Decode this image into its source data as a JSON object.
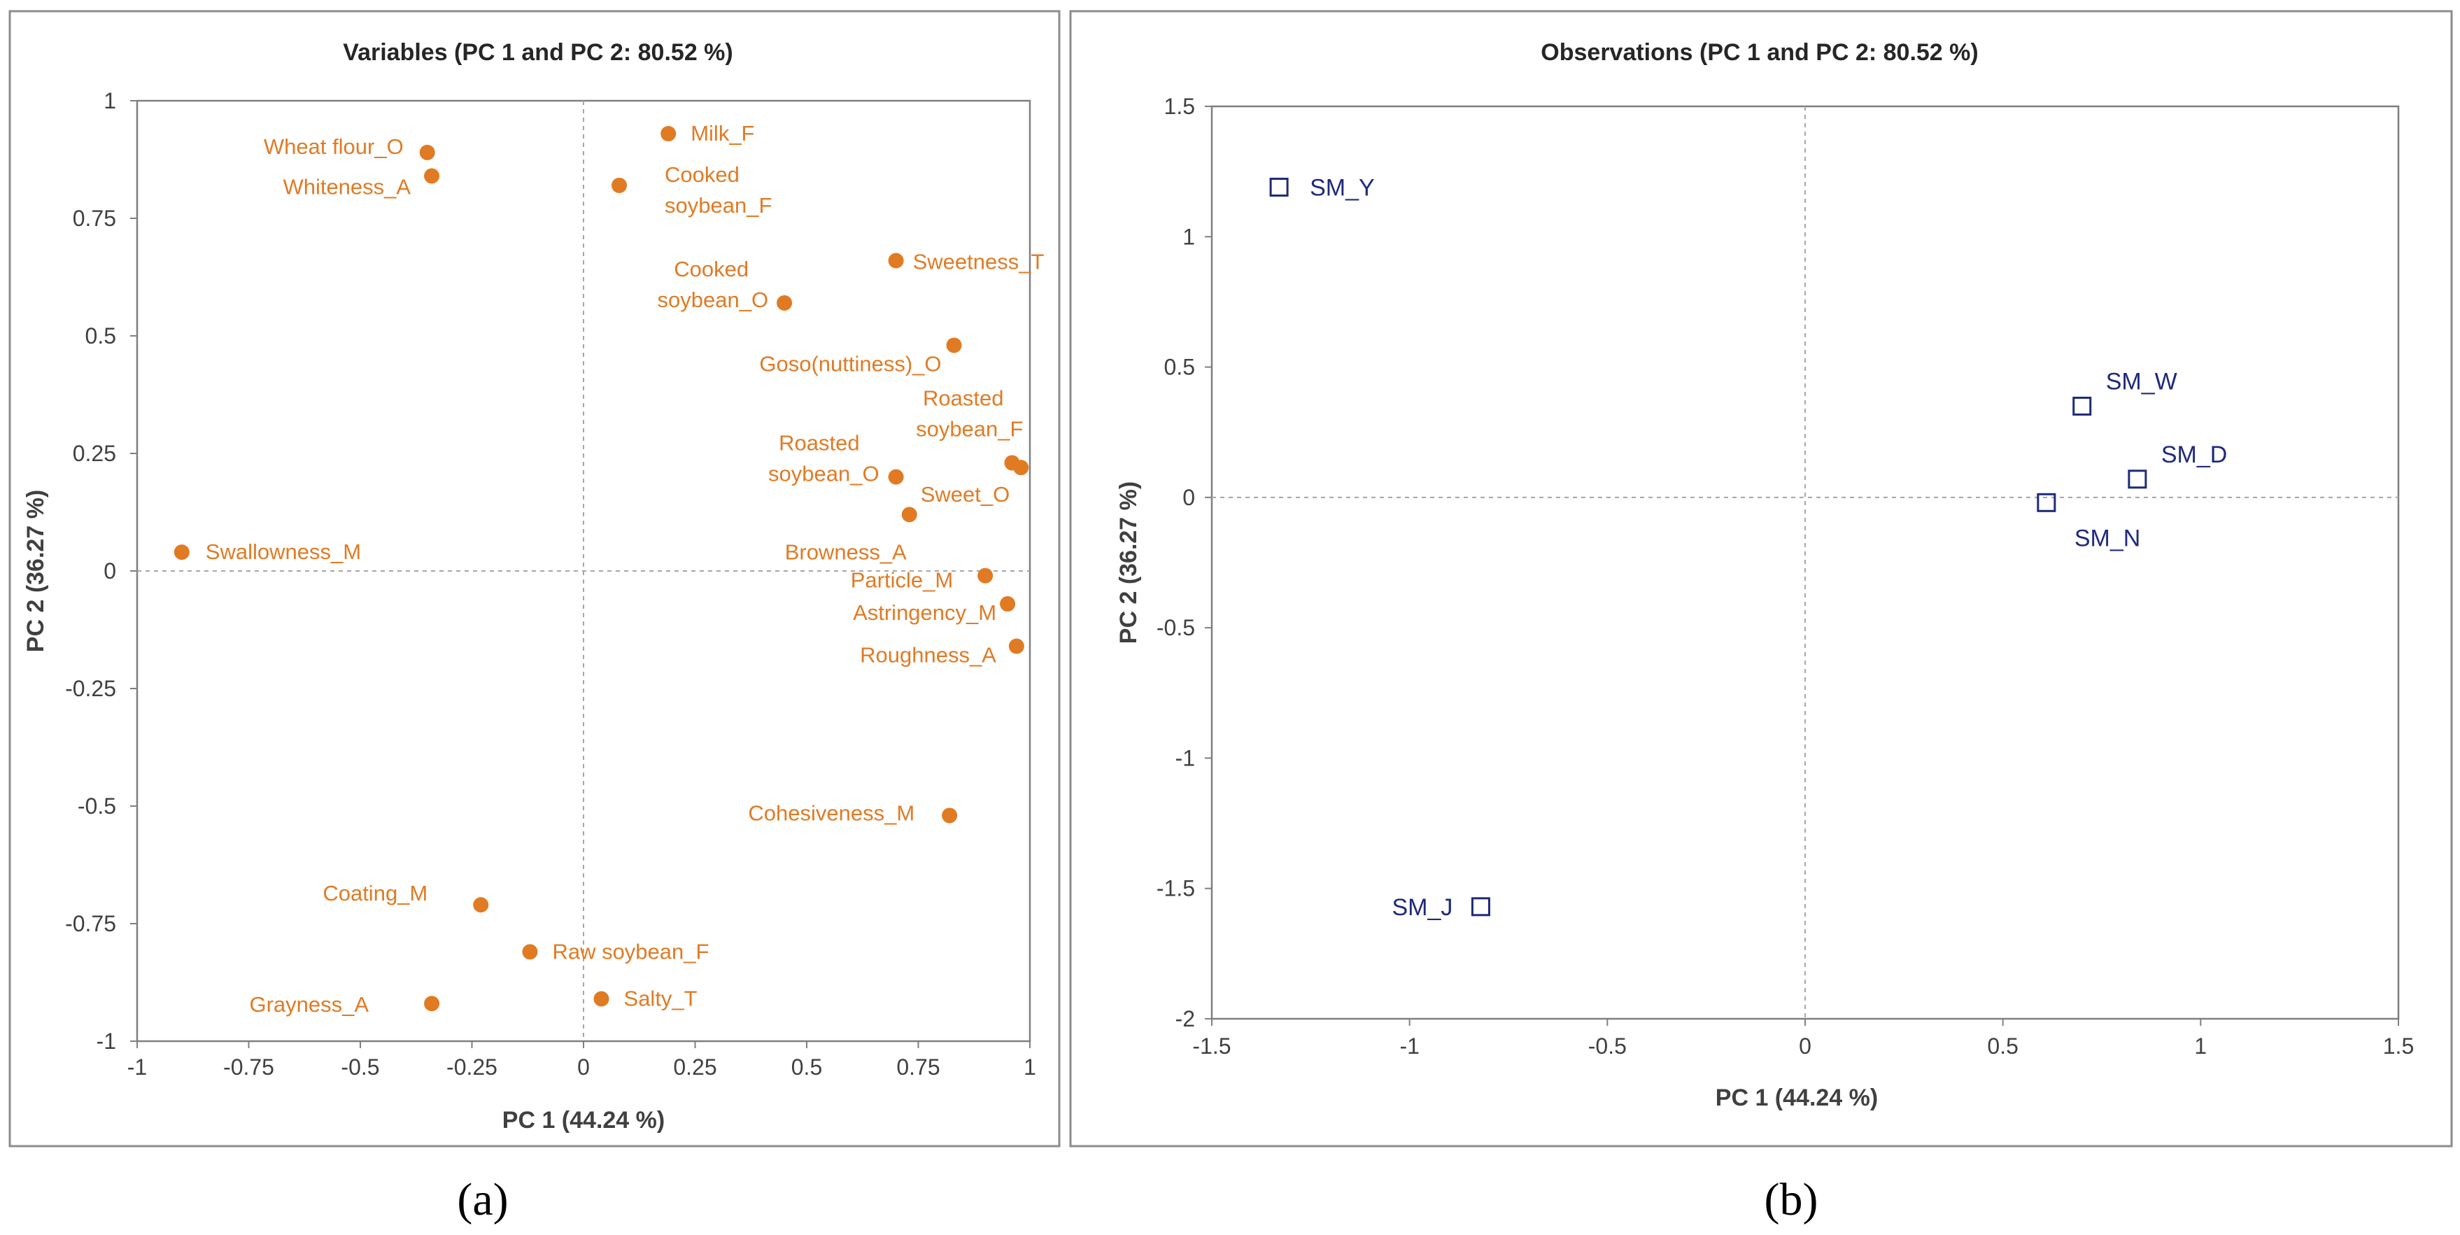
{
  "colors": {
    "variable_point": "#E07B24",
    "variable_label": "#E07B24",
    "observation_marker": "#1F2A7A",
    "observation_label": "#1F2A7A",
    "axis": "#7F7F7F",
    "dashed": "#A6A6A6",
    "text": "#404040"
  },
  "panels": [
    {
      "letter": "(a)"
    },
    {
      "letter": "(b)"
    }
  ],
  "chart_data": [
    {
      "type": "scatter",
      "title": "Variables (PC 1 and PC 2: 80.52 %)",
      "xlabel": "PC 1 (44.24 %)",
      "ylabel": "PC 2 (36.27 %)",
      "xlim": [
        -1,
        1
      ],
      "ylim": [
        -1,
        1
      ],
      "xticks": [
        -1,
        -0.75,
        -0.5,
        -0.25,
        0,
        0.25,
        0.5,
        0.75,
        1
      ],
      "yticks": [
        -1,
        -0.75,
        -0.5,
        -0.25,
        0,
        0.25,
        0.5,
        0.75,
        1
      ],
      "xtick_labels": [
        "-1",
        "-0.75",
        "-0.5",
        "-0.25",
        "0",
        "0.25",
        "0.5",
        "0.75",
        "1"
      ],
      "ytick_labels": [
        "-1",
        "-0.75",
        "-0.5",
        "-0.25",
        "0",
        "0.25",
        "0.5",
        "0.75",
        "1"
      ],
      "points": [
        {
          "label": "Wheat flour_O",
          "x": -0.35,
          "y": 0.89
        },
        {
          "label": "Whiteness_A",
          "x": -0.34,
          "y": 0.84
        },
        {
          "label": "Milk_F",
          "x": 0.19,
          "y": 0.93
        },
        {
          "label": "Cooked soybean_F",
          "x": 0.08,
          "y": 0.82
        },
        {
          "label": "Sweetness_T",
          "x": 0.7,
          "y": 0.66
        },
        {
          "label": "Cooked soybean_O",
          "x": 0.45,
          "y": 0.57
        },
        {
          "label": "Goso(nuttiness)_O",
          "x": 0.83,
          "y": 0.48
        },
        {
          "label": "Roasted soybean_F",
          "x": 0.96,
          "y": 0.23
        },
        {
          "label": "Sweet_O",
          "x": 0.98,
          "y": 0.22
        },
        {
          "label": "Roasted soybean_O",
          "x": 0.7,
          "y": 0.2
        },
        {
          "label": "Browness_A",
          "x": 0.73,
          "y": 0.12
        },
        {
          "label": "Swallowness_M",
          "x": -0.9,
          "y": 0.04
        },
        {
          "label": "Particle_M",
          "x": 0.9,
          "y": -0.01
        },
        {
          "label": "Astringency_M",
          "x": 0.95,
          "y": -0.07
        },
        {
          "label": "Roughness_A",
          "x": 0.97,
          "y": -0.16
        },
        {
          "label": "Cohesiveness_M",
          "x": 0.82,
          "y": -0.52
        },
        {
          "label": "Coating_M",
          "x": -0.23,
          "y": -0.71
        },
        {
          "label": "Raw soybean_F",
          "x": -0.12,
          "y": -0.81
        },
        {
          "label": "Grayness_A",
          "x": -0.34,
          "y": -0.92
        },
        {
          "label": "Salty_T",
          "x": 0.04,
          "y": -0.91
        }
      ]
    },
    {
      "type": "scatter",
      "title": "Observations (PC 1 and PC 2: 80.52 %)",
      "xlabel": "PC 1 (44.24 %)",
      "ylabel": "PC 2 (36.27 %)",
      "xlim": [
        -1.5,
        1.5
      ],
      "ylim": [
        -2,
        1.5
      ],
      "xticks": [
        -1.5,
        -1,
        -0.5,
        0,
        0.5,
        1,
        1.5
      ],
      "yticks": [
        -2,
        -1.5,
        -1,
        -0.5,
        0,
        0.5,
        1,
        1.5
      ],
      "xtick_labels": [
        "-1.5",
        "-1",
        "-0.5",
        "0",
        "0.5",
        "1",
        "1.5"
      ],
      "ytick_labels": [
        "-2",
        "-1.5",
        "-1",
        "-0.5",
        "0",
        "0.5",
        "1",
        "1.5"
      ],
      "points": [
        {
          "label": "SM_Y",
          "x": -1.33,
          "y": 1.19
        },
        {
          "label": "SM_W",
          "x": 0.7,
          "y": 0.35
        },
        {
          "label": "SM_D",
          "x": 0.84,
          "y": 0.07
        },
        {
          "label": "SM_N",
          "x": 0.61,
          "y": -0.02
        },
        {
          "label": "SM_J",
          "x": -0.82,
          "y": -1.57
        }
      ]
    }
  ]
}
